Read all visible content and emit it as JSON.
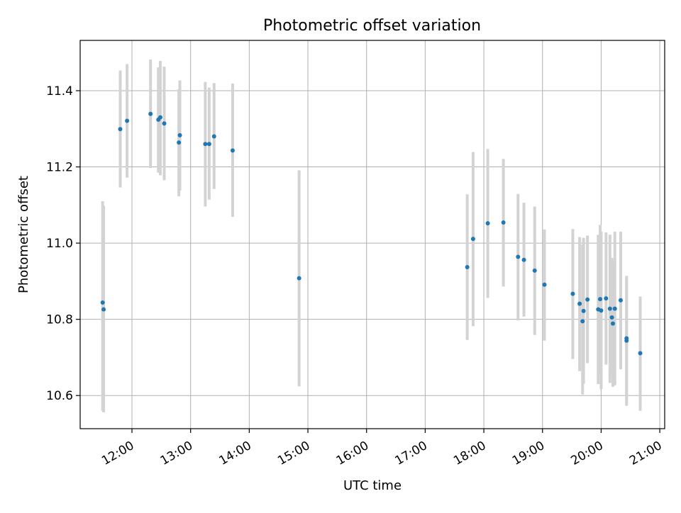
{
  "chart_data": {
    "type": "scatter",
    "title": "Photometric offset variation",
    "xlabel": "UTC time",
    "ylabel": "Photometric offset",
    "x_ticks": [
      "12:00",
      "13:00",
      "14:00",
      "15:00",
      "16:00",
      "17:00",
      "18:00",
      "19:00",
      "20:00",
      "21:00"
    ],
    "y_ticks": [
      "10.6",
      "10.8",
      "11.0",
      "11.2",
      "11.4"
    ],
    "xlim": [
      "11:07",
      "21:05"
    ],
    "ylim": [
      10.513,
      11.532
    ],
    "grid": true,
    "colors": {
      "point": "#1f77b4",
      "errorbar": "#d3d3d3",
      "grid": "#b0b0b0"
    },
    "points": [
      {
        "x": "11:30",
        "y": 10.844,
        "lo": 10.56,
        "hi": 11.11
      },
      {
        "x": "11:31",
        "y": 10.826,
        "lo": 10.556,
        "hi": 11.098
      },
      {
        "x": "11:48",
        "y": 11.299,
        "lo": 11.146,
        "hi": 11.453
      },
      {
        "x": "11:55",
        "y": 11.321,
        "lo": 11.172,
        "hi": 11.47
      },
      {
        "x": "12:19",
        "y": 11.339,
        "lo": 11.197,
        "hi": 11.482
      },
      {
        "x": "12:27",
        "y": 11.324,
        "lo": 11.185,
        "hi": 11.461
      },
      {
        "x": "12:29",
        "y": 11.33,
        "lo": 11.178,
        "hi": 11.478
      },
      {
        "x": "12:33",
        "y": 11.314,
        "lo": 11.165,
        "hi": 11.463
      },
      {
        "x": "12:48",
        "y": 11.264,
        "lo": 11.123,
        "hi": 11.404
      },
      {
        "x": "12:49",
        "y": 11.283,
        "lo": 11.138,
        "hi": 11.427
      },
      {
        "x": "13:15",
        "y": 11.26,
        "lo": 11.096,
        "hi": 11.423
      },
      {
        "x": "13:19",
        "y": 11.26,
        "lo": 11.114,
        "hi": 11.408
      },
      {
        "x": "13:24",
        "y": 11.28,
        "lo": 11.142,
        "hi": 11.42
      },
      {
        "x": "13:43",
        "y": 11.243,
        "lo": 11.069,
        "hi": 11.419
      },
      {
        "x": "14:51",
        "y": 10.908,
        "lo": 10.624,
        "hi": 11.191
      },
      {
        "x": "17:43",
        "y": 10.937,
        "lo": 10.746,
        "hi": 11.128
      },
      {
        "x": "17:49",
        "y": 11.011,
        "lo": 10.782,
        "hi": 11.239
      },
      {
        "x": "18:04",
        "y": 11.052,
        "lo": 10.856,
        "hi": 11.247
      },
      {
        "x": "18:20",
        "y": 11.054,
        "lo": 10.886,
        "hi": 11.221
      },
      {
        "x": "18:35",
        "y": 10.964,
        "lo": 10.797,
        "hi": 11.129
      },
      {
        "x": "18:41",
        "y": 10.956,
        "lo": 10.807,
        "hi": 11.106
      },
      {
        "x": "18:52",
        "y": 10.928,
        "lo": 10.759,
        "hi": 11.096
      },
      {
        "x": "19:02",
        "y": 10.891,
        "lo": 10.744,
        "hi": 11.036
      },
      {
        "x": "19:31",
        "y": 10.867,
        "lo": 10.696,
        "hi": 11.037
      },
      {
        "x": "19:38",
        "y": 10.841,
        "lo": 10.664,
        "hi": 11.016
      },
      {
        "x": "19:41",
        "y": 10.795,
        "lo": 10.603,
        "hi": 10.996
      },
      {
        "x": "19:42",
        "y": 10.822,
        "lo": 10.631,
        "hi": 11.014
      },
      {
        "x": "19:46",
        "y": 10.852,
        "lo": 10.685,
        "hi": 11.02
      },
      {
        "x": "19:57",
        "y": 10.826,
        "lo": 10.63,
        "hi": 11.022
      },
      {
        "x": "19:59",
        "y": 10.853,
        "lo": 10.658,
        "hi": 11.048
      },
      {
        "x": "20:00",
        "y": 10.823,
        "lo": 10.617,
        "hi": 11.03
      },
      {
        "x": "20:05",
        "y": 10.855,
        "lo": 10.681,
        "hi": 11.028
      },
      {
        "x": "20:09",
        "y": 10.828,
        "lo": 10.633,
        "hi": 11.022
      },
      {
        "x": "20:11",
        "y": 10.805,
        "lo": 10.65,
        "hi": 10.961
      },
      {
        "x": "20:12",
        "y": 10.789,
        "lo": 10.623,
        "hi": 10.95
      },
      {
        "x": "20:14",
        "y": 10.828,
        "lo": 10.627,
        "hi": 11.03
      },
      {
        "x": "20:20",
        "y": 10.85,
        "lo": 10.669,
        "hi": 11.03
      },
      {
        "x": "20:26",
        "y": 10.744,
        "lo": 10.573,
        "hi": 10.914
      },
      {
        "x": "20:26",
        "y": 10.75,
        "lo": 10.59,
        "hi": 10.906
      },
      {
        "x": "20:40",
        "y": 10.711,
        "lo": 10.56,
        "hi": 10.86
      }
    ]
  }
}
